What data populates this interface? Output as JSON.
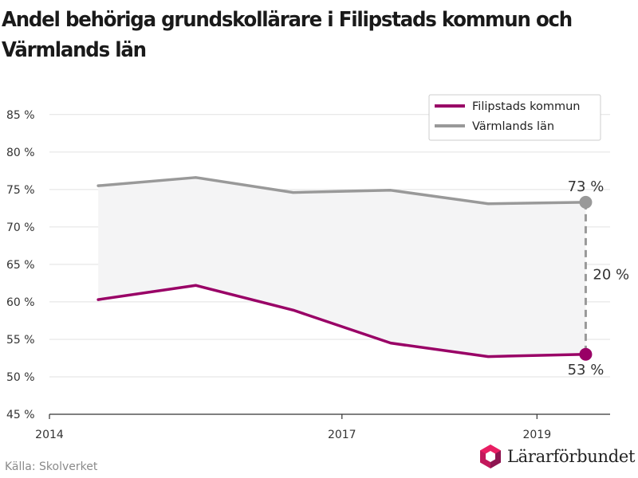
{
  "title": "Andel behöriga grundskollärare i Filipstads kommun och Värmlands län",
  "source": "Källa: Skolverket",
  "logo_text": "Lärarförbundet",
  "chart_data": {
    "type": "line",
    "title": "Andel behöriga grundskollärare i Filipstads kommun och Värmlands län",
    "x": [
      2014.5,
      2015.5,
      2016.5,
      2017.5,
      2018.5,
      2019.5
    ],
    "xlim": [
      2014,
      2019.75
    ],
    "xticks": [
      "2014",
      "2017",
      "2019"
    ],
    "ylim": [
      45,
      87
    ],
    "yticks": [
      "45 %",
      "50 %",
      "55 %",
      "60 %",
      "65 %",
      "70 %",
      "75 %",
      "80 %",
      "85 %"
    ],
    "series": [
      {
        "name": "Filipstads kommun",
        "color": "#990066",
        "values": [
          60.3,
          62.2,
          58.9,
          54.5,
          52.7,
          53.0
        ]
      },
      {
        "name": "Värmlands län",
        "color": "#999999",
        "values": [
          75.5,
          76.6,
          74.6,
          74.9,
          73.1,
          73.3
        ]
      }
    ],
    "annotations": {
      "end_top": "73 %",
      "end_bottom": "53 %",
      "gap": "20 %"
    },
    "legend_position": "top-right",
    "grid": true,
    "shaded_gap": true
  }
}
